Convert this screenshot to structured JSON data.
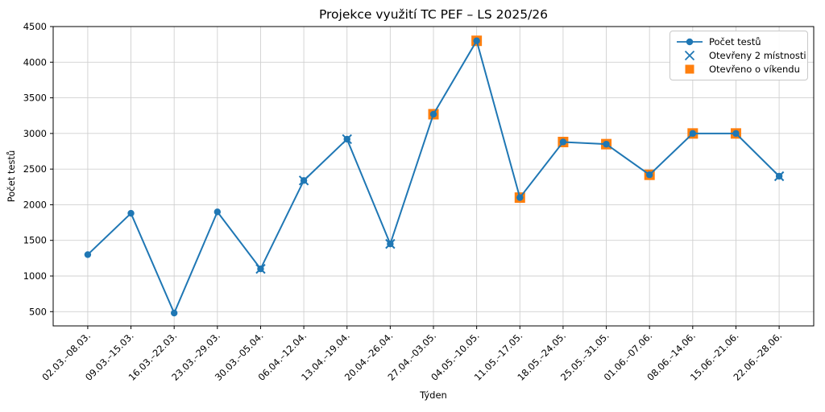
{
  "chart_data": {
    "type": "line",
    "title": "Projekce využití TC PEF – LS 2025/26",
    "xlabel": "Týden",
    "ylabel": "Počet testů",
    "ylim": [
      300,
      4500
    ],
    "yticks": [
      500,
      1000,
      1500,
      2000,
      2500,
      3000,
      3500,
      4000,
      4500
    ],
    "grid": true,
    "legend_position": "upper right",
    "categories": [
      "02.03.–08.03.",
      "09.03.–15.03.",
      "16.03.–22.03.",
      "23.03.–29.03.",
      "30.03.–05.04.",
      "06.04.–12.04.",
      "13.04.–19.04.",
      "20.04.–26.04.",
      "27.04.–03.05.",
      "04.05.–10.05.",
      "11.05.–17.05.",
      "18.05.–24.05.",
      "25.05.–31.05.",
      "01.06.–07.06.",
      "08.06.–14.06.",
      "15.06.–21.06.",
      "22.06.–28.06."
    ],
    "series": [
      {
        "name": "Počet testů",
        "kind": "line",
        "marker": "circle",
        "color": "#1f77b4",
        "values": [
          1300,
          1880,
          480,
          1900,
          1100,
          2340,
          2920,
          1450,
          3270,
          4300,
          2100,
          2880,
          2850,
          2420,
          3000,
          3000,
          2400
        ]
      },
      {
        "name": "Otevřeny 2 místnosti",
        "kind": "scatter",
        "marker": "x",
        "color": "#1f77b4",
        "week_indices": [
          4,
          5,
          6,
          7,
          8,
          9,
          10,
          11,
          12,
          13,
          14,
          15,
          16
        ]
      },
      {
        "name": "Otevřeno o víkendu",
        "kind": "scatter",
        "marker": "square",
        "color": "#ff7f0e",
        "week_indices": [
          8,
          9,
          10,
          11,
          12,
          13,
          14,
          15
        ]
      }
    ]
  },
  "colors": {
    "line": "#1f77b4",
    "weekend": "#ff7f0e",
    "grid": "#d0d0d0",
    "axis": "#000000",
    "background": "#ffffff",
    "legend_border": "#c8c8c8"
  }
}
